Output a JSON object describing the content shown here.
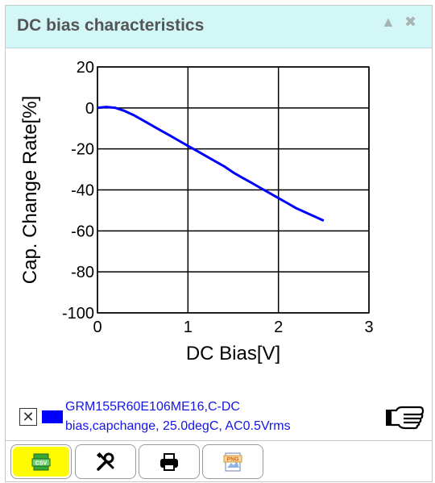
{
  "window": {
    "title": "DC bias characteristics"
  },
  "chart_data": {
    "type": "line",
    "xlabel": "DC Bias[V]",
    "ylabel": "Cap. Change Rate[%]",
    "xlim": [
      0,
      3
    ],
    "ylim": [
      -100,
      20
    ],
    "xticks": [
      "0",
      "1",
      "2",
      "3"
    ],
    "yticks": [
      "20",
      "0",
      "-20",
      "-40",
      "-60",
      "-80",
      "-100"
    ],
    "grid": true,
    "series": [
      {
        "color": "#0000ff",
        "x": [
          0.0,
          0.1,
          0.2,
          0.3,
          0.4,
          0.5,
          0.6,
          0.7,
          0.8,
          0.9,
          1.0,
          1.1,
          1.2,
          1.3,
          1.4,
          1.5,
          1.6,
          1.7,
          1.8,
          1.9,
          2.0,
          2.1,
          2.2,
          2.3,
          2.4,
          2.5
        ],
        "y": [
          0.0,
          0.5,
          0.0,
          -1.5,
          -3.5,
          -6.0,
          -8.5,
          -11.0,
          -13.5,
          -16.0,
          -18.5,
          -21.0,
          -23.5,
          -26.0,
          -28.5,
          -31.5,
          -34.0,
          -36.5,
          -39.0,
          -41.5,
          -44.0,
          -46.5,
          -49.0,
          -51.0,
          -53.0,
          -55.0
        ]
      }
    ]
  },
  "legend": {
    "series_name": "GRM155R60E106ME16,C-DC",
    "series_desc": "bias,capchange, 25.0degC, AC0.5Vrms",
    "swatch_color": "#0000ff"
  },
  "toolbar": {
    "items": [
      {
        "icon": "csv-icon",
        "label": "CSV"
      },
      {
        "icon": "wrench-screwdriver-icon"
      },
      {
        "icon": "printer-icon"
      },
      {
        "icon": "png-icon",
        "label": "PNG"
      }
    ]
  }
}
